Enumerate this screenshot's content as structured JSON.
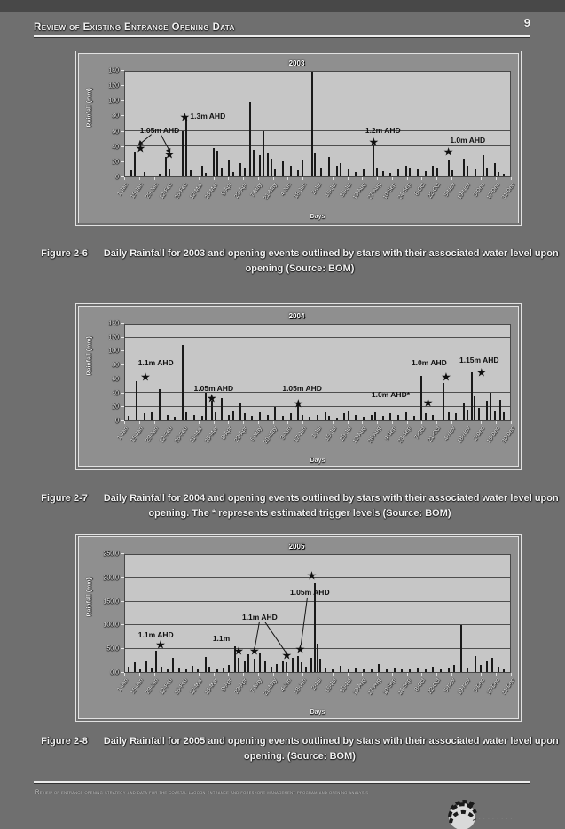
{
  "page": {
    "header": {
      "title": "Review of Existing Entrance Opening Data",
      "page_number": "9"
    },
    "footer": {
      "text": "Review of entrance opening strategy and data for the coastal lagoon entrance and foreshore management program and opening analysis"
    },
    "colors": {
      "page_background": "#6f6f6f",
      "plot_background": "#c6c6c6",
      "bar_color": "#191919",
      "text_color": "#f0f0f0"
    }
  },
  "figures": [
    {
      "caption_label": "Figure 2-6",
      "caption_text": "Daily Rainfall for 2003 and opening events outlined by stars with their associated water level upon opening (Source: BOM)"
    },
    {
      "caption_label": "Figure 2-7",
      "caption_text": "Daily Rainfall for 2004 and opening events outlined by stars with their associated water level upon opening. The * represents estimated trigger levels (Source: BOM)"
    },
    {
      "caption_label": "Figure 2-8",
      "caption_text": "Daily Rainfall for 2005 and opening events outlined by stars with their associated water level upon opening. (Source: BOM)"
    }
  ],
  "chart_data": [
    {
      "type": "bar",
      "title": "2003",
      "xlabel": "Days",
      "ylabel": "Rainfall (mm)",
      "ylim": [
        0,
        140
      ],
      "yticks": [
        "0",
        "20",
        "40",
        "60",
        "80",
        "100",
        "120",
        "140"
      ],
      "gridlines": [
        40,
        60
      ],
      "x_tick_labels": [
        "1-Jan",
        "15-Jan",
        "29-Jan",
        "12-Feb",
        "26-Feb",
        "12-Mar",
        "26-Mar",
        "9-Apr",
        "23-Apr",
        "7-May",
        "21-May",
        "4-Jun",
        "18-Jun",
        "2-Jul",
        "16-Jul",
        "30-Jul",
        "13-Aug",
        "27-Aug",
        "10-Sep",
        "24-Sep",
        "8-Oct",
        "22-Oct",
        "5-Nov",
        "19-Nov",
        "3-Dec",
        "17-Dec",
        "31-Dec"
      ],
      "bars": [
        [
          1.5,
          8
        ],
        [
          2.5,
          33
        ],
        [
          5,
          6
        ],
        [
          9,
          4
        ],
        [
          10.5,
          26
        ],
        [
          11.5,
          10
        ],
        [
          15,
          60
        ],
        [
          15.8,
          80
        ],
        [
          17,
          8
        ],
        [
          20,
          14
        ],
        [
          21,
          5
        ],
        [
          23,
          38
        ],
        [
          24,
          34
        ],
        [
          25,
          12
        ],
        [
          27,
          22
        ],
        [
          28,
          6
        ],
        [
          30,
          18
        ],
        [
          31,
          12
        ],
        [
          32.6,
          100
        ],
        [
          33.4,
          36
        ],
        [
          35,
          28
        ],
        [
          36,
          60
        ],
        [
          37,
          32
        ],
        [
          38,
          24
        ],
        [
          39,
          10
        ],
        [
          41,
          20
        ],
        [
          43,
          14
        ],
        [
          45,
          8
        ],
        [
          46,
          22
        ],
        [
          48.6,
          140
        ],
        [
          49.4,
          32
        ],
        [
          51,
          12
        ],
        [
          53,
          26
        ],
        [
          55,
          14
        ],
        [
          56,
          18
        ],
        [
          58,
          9
        ],
        [
          60,
          6
        ],
        [
          62,
          10
        ],
        [
          64.6,
          42
        ],
        [
          65.4,
          12
        ],
        [
          67,
          7
        ],
        [
          69,
          5
        ],
        [
          71,
          9
        ],
        [
          73,
          14
        ],
        [
          74,
          11
        ],
        [
          76,
          9
        ],
        [
          78,
          7
        ],
        [
          80,
          14
        ],
        [
          81,
          11
        ],
        [
          84,
          22
        ],
        [
          85,
          8
        ],
        [
          88,
          24
        ],
        [
          89,
          14
        ],
        [
          91,
          9
        ],
        [
          93,
          28
        ],
        [
          94,
          12
        ],
        [
          96,
          18
        ],
        [
          97,
          6
        ],
        [
          98.5,
          4
        ]
      ],
      "stars": [
        {
          "x": 4,
          "y": 38
        },
        {
          "x": 11.5,
          "y": 30
        },
        {
          "x": 15.5,
          "y": 80
        },
        {
          "x": 64.6,
          "y": 46
        },
        {
          "x": 84,
          "y": 33
        }
      ],
      "annotations": [
        {
          "text": "1.05m AHD",
          "x": 9,
          "y": 62
        },
        {
          "text": "1.3m AHD",
          "x": 21.5,
          "y": 81
        },
        {
          "text": "1.2m AHD",
          "x": 67,
          "y": 62
        },
        {
          "text": "1.0m AHD",
          "x": 89,
          "y": 49
        }
      ],
      "leaders": [
        [
          7,
          56,
          4,
          43,
          1
        ],
        [
          9.5,
          56,
          11.8,
          34,
          1
        ]
      ]
    },
    {
      "type": "bar",
      "title": "2004",
      "xlabel": "Days",
      "ylabel": "Rainfall (mm)",
      "ylim": [
        0,
        140
      ],
      "yticks": [
        "0",
        "20",
        "40",
        "60",
        "80",
        "100",
        "120",
        "140"
      ],
      "gridlines": [
        20,
        40,
        60,
        120
      ],
      "x_tick_labels": [
        "1-Jan",
        "15-Jan",
        "29-Jan",
        "12-Feb",
        "26-Feb",
        "11-Mar",
        "25-Mar",
        "8-Apr",
        "22-Apr",
        "6-May",
        "20-May",
        "3-Jun",
        "17-Jun",
        "1-Jul",
        "15-Jul",
        "29-Jul",
        "12-Aug",
        "26-Aug",
        "9-Sep",
        "23-Sep",
        "7-Oct",
        "21-Oct",
        "4-Nov",
        "18-Nov",
        "2-Dec",
        "16-Dec",
        "30-Dec"
      ],
      "bars": [
        [
          1,
          6
        ],
        [
          3,
          57
        ],
        [
          5,
          10
        ],
        [
          7,
          12
        ],
        [
          9,
          45
        ],
        [
          11,
          8
        ],
        [
          13,
          5
        ],
        [
          15,
          110
        ],
        [
          16,
          12
        ],
        [
          18,
          8
        ],
        [
          20,
          6
        ],
        [
          21,
          40
        ],
        [
          22.5,
          28
        ],
        [
          23.5,
          12
        ],
        [
          25,
          33
        ],
        [
          27,
          8
        ],
        [
          28,
          14
        ],
        [
          30,
          25
        ],
        [
          31,
          10
        ],
        [
          33,
          6
        ],
        [
          35,
          12
        ],
        [
          37,
          8
        ],
        [
          39,
          20
        ],
        [
          41,
          6
        ],
        [
          43,
          10
        ],
        [
          45,
          22
        ],
        [
          46,
          8
        ],
        [
          48,
          5
        ],
        [
          50,
          8
        ],
        [
          52,
          12
        ],
        [
          53,
          6
        ],
        [
          55,
          4
        ],
        [
          57,
          10
        ],
        [
          58,
          14
        ],
        [
          60,
          8
        ],
        [
          62,
          5
        ],
        [
          64,
          8
        ],
        [
          65,
          12
        ],
        [
          67,
          6
        ],
        [
          69,
          10
        ],
        [
          71,
          8
        ],
        [
          73,
          12
        ],
        [
          75,
          6
        ],
        [
          77,
          65
        ],
        [
          78,
          10
        ],
        [
          80,
          8
        ],
        [
          82.7,
          55
        ],
        [
          84,
          12
        ],
        [
          86,
          10
        ],
        [
          88,
          25
        ],
        [
          89,
          15
        ],
        [
          90,
          70
        ],
        [
          90.8,
          35
        ],
        [
          92,
          18
        ],
        [
          94,
          28
        ],
        [
          95,
          40
        ],
        [
          96,
          14
        ],
        [
          97.5,
          30
        ],
        [
          98.5,
          12
        ]
      ],
      "stars": [
        {
          "x": 5.3,
          "y": 63
        },
        {
          "x": 22.5,
          "y": 33
        },
        {
          "x": 45,
          "y": 25
        },
        {
          "x": 78.7,
          "y": 26
        },
        {
          "x": 83.4,
          "y": 63
        },
        {
          "x": 92.6,
          "y": 70
        }
      ],
      "annotations": [
        {
          "text": "1.1m AHD",
          "x": 8,
          "y": 84
        },
        {
          "text": "1.05m AHD",
          "x": 23,
          "y": 47
        },
        {
          "text": "1.05m AHD",
          "x": 46,
          "y": 47
        },
        {
          "text": "1.0m AHD*",
          "x": 69,
          "y": 37
        },
        {
          "text": "1.0m AHD",
          "x": 79,
          "y": 84
        },
        {
          "text": "1.15m AHD",
          "x": 92,
          "y": 88
        }
      ],
      "leaders": []
    },
    {
      "type": "bar",
      "title": "2005",
      "xlabel": "Days",
      "ylabel": "Rainfall (mm)",
      "ylim": [
        0,
        250
      ],
      "yticks": [
        "0.0",
        "50.0",
        "100.0",
        "150.0",
        "200.0",
        "250.0"
      ],
      "gridlines": [
        50,
        100,
        150,
        200
      ],
      "x_tick_labels": [
        "1-Jan",
        "15-Jan",
        "29-Jan",
        "12-Feb",
        "26-Feb",
        "12-Mar",
        "26-Mar",
        "9-Apr",
        "23-Apr",
        "7-May",
        "21-May",
        "4-Jun",
        "18-Jun",
        "2-Jul",
        "16-Jul",
        "30-Jul",
        "13-Aug",
        "27-Aug",
        "10-Sep",
        "24-Sep",
        "8-Oct",
        "22-Oct",
        "5-Nov",
        "19-Nov",
        "3-Dec",
        "17-Dec",
        "31-Dec"
      ],
      "bars": [
        [
          1,
          12
        ],
        [
          2.5,
          20
        ],
        [
          4,
          8
        ],
        [
          5.5,
          25
        ],
        [
          7,
          10
        ],
        [
          8,
          46
        ],
        [
          9.5,
          12
        ],
        [
          11,
          6
        ],
        [
          12.5,
          30
        ],
        [
          14,
          10
        ],
        [
          16,
          5
        ],
        [
          17.5,
          14
        ],
        [
          19,
          8
        ],
        [
          21,
          32
        ],
        [
          22,
          12
        ],
        [
          24,
          6
        ],
        [
          25.5,
          10
        ],
        [
          27,
          16
        ],
        [
          28.5,
          55
        ],
        [
          29.5,
          30
        ],
        [
          31,
          22
        ],
        [
          32,
          38
        ],
        [
          33.6,
          28
        ],
        [
          35,
          40
        ],
        [
          36.5,
          25
        ],
        [
          38,
          12
        ],
        [
          39.5,
          18
        ],
        [
          41,
          25
        ],
        [
          42,
          20
        ],
        [
          43.5,
          30
        ],
        [
          45,
          35
        ],
        [
          45.8,
          20
        ],
        [
          47,
          12
        ],
        [
          48.5,
          30
        ],
        [
          49.2,
          189
        ],
        [
          50,
          60
        ],
        [
          50.8,
          28
        ],
        [
          52,
          10
        ],
        [
          54,
          8
        ],
        [
          56,
          14
        ],
        [
          58,
          6
        ],
        [
          60,
          10
        ],
        [
          62,
          5
        ],
        [
          64,
          8
        ],
        [
          66,
          18
        ],
        [
          68,
          6
        ],
        [
          70,
          10
        ],
        [
          72,
          8
        ],
        [
          74,
          5
        ],
        [
          76,
          10
        ],
        [
          78,
          8
        ],
        [
          80,
          12
        ],
        [
          82,
          6
        ],
        [
          84,
          10
        ],
        [
          85.5,
          15
        ],
        [
          87.4,
          100
        ],
        [
          89,
          10
        ],
        [
          91,
          35
        ],
        [
          92.5,
          15
        ],
        [
          94,
          22
        ],
        [
          95.5,
          30
        ],
        [
          97,
          12
        ],
        [
          98.5,
          8
        ]
      ],
      "stars": [
        {
          "x": 9.2,
          "y": 59
        },
        {
          "x": 29.5,
          "y": 46
        },
        {
          "x": 33.6,
          "y": 46
        },
        {
          "x": 42,
          "y": 36
        },
        {
          "x": 45.5,
          "y": 50
        },
        {
          "x": 48.5,
          "y": 207
        }
      ],
      "annotations": [
        {
          "text": "1.1m AHD",
          "x": 8,
          "y": 80
        },
        {
          "text": "1.1m",
          "x": 25,
          "y": 72
        },
        {
          "text": "1.1m AHD",
          "x": 35,
          "y": 117
        },
        {
          "text": "1.05m AHD",
          "x": 48,
          "y": 170
        }
      ],
      "leaders": [
        [
          35,
          108,
          33.8,
          52,
          0
        ],
        [
          36.5,
          108,
          42,
          42,
          0
        ],
        [
          47.5,
          160,
          45.8,
          56,
          0
        ]
      ]
    }
  ]
}
